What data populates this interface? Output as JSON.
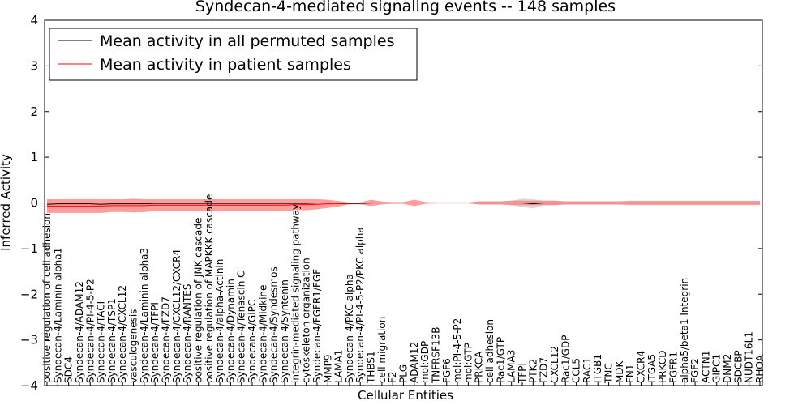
{
  "chart_data": {
    "type": "line",
    "title": "Syndecan-4-mediated signaling events -- 148 samples",
    "xlabel": "Cellular Entities",
    "ylabel": "Inferred Activity",
    "ylim": [
      -4,
      4
    ],
    "yticks": [
      -4,
      -3,
      -2,
      -1,
      0,
      1,
      2,
      3,
      4
    ],
    "ytick_labels": [
      "−4",
      "−3",
      "−2",
      "−1",
      "0",
      "1",
      "2",
      "3",
      "4"
    ],
    "grid": false,
    "legend_position": "top-left",
    "categories": [
      "positive regulation of cell adhesion",
      "Syndecan-4/Laminin alpha1",
      "SDC4",
      "Syndecan-4/ADAM12",
      "Syndecan-4/PI-4-5-P2",
      "Syndecan-4/TACI",
      "Syndecan-4/TSP1",
      "Syndecan-4/CXCL12",
      "vasculogenesis",
      "Syndecan-4/Laminin alpha3",
      "Syndecan-4/TFPI",
      "Syndecan-4/FZD7",
      "Syndecan-4/CXCL12/CXCR4",
      "Syndecan-4/RANTES",
      "positive regulation of JNK cascade",
      "positive regulation of MAPKKK cascade",
      "Syndecan-4/alpha-Actinin",
      "Syndecan-4/Dynamin",
      "Syndecan-4/Tenascin C",
      "Syndecan-4/GIPC",
      "Syndecan-4/Midkine",
      "Syndecan-4/Syndesmos",
      "Syndecan-4/Syntenin",
      "integrin-mediated signaling pathway",
      "cytoskeleton organization",
      "Syndecan-4/FGFR1/FGF",
      "MMP9",
      "LAMA1",
      "Syndecan-4/PKC alpha",
      "Syndecan-4/PI-4-5-P2/PKC alpha",
      "THBS1",
      "cell migration",
      "F2",
      "PLG",
      "ADAM12",
      "mol:GDP",
      "TNFRSF13B",
      "FGF6",
      "mol:PI-4-5-P2",
      "mol:GTP",
      "PRKCA",
      "cell adhesion",
      "Rac1/GTP",
      "LAMA3",
      "TFPI",
      "PTK2",
      "FZD7",
      "CXCL12",
      "Rac1/GDP",
      "CCL5",
      "RAC1",
      "ITGB1",
      "TNC",
      "MDK",
      "FN1",
      "CXCR4",
      "ITGA5",
      "PRKCD",
      "FGFR1",
      "alpha5/beta1 Integrin",
      "FGF2",
      "ACTN1",
      "GIPC1",
      "DNM2",
      "SDCBP",
      "NUDT16L1",
      "RHOA"
    ],
    "series": [
      {
        "name": "Mean activity in all permuted samples",
        "color": "#000000",
        "values": [
          -0.03,
          -0.02,
          -0.02,
          -0.02,
          -0.02,
          -0.03,
          -0.02,
          -0.02,
          -0.02,
          -0.02,
          -0.01,
          -0.01,
          -0.01,
          -0.01,
          -0.01,
          -0.01,
          -0.01,
          -0.01,
          -0.01,
          -0.01,
          -0.01,
          -0.01,
          -0.01,
          -0.01,
          -0.01,
          0.0,
          0.0,
          0.0,
          -0.01,
          -0.01,
          0.0,
          0.0,
          0.0,
          0.0,
          0.0,
          0.0,
          0.0,
          0.0,
          0.0,
          0.0,
          0.0,
          0.0,
          0.0,
          0.0,
          0.0,
          -0.02,
          0.0,
          0.0,
          0.0,
          0.0,
          0.0,
          0.0,
          0.0,
          0.0,
          0.0,
          0.0,
          0.0,
          0.0,
          0.0,
          0.0,
          0.0,
          0.0,
          0.0,
          0.0,
          0.0,
          0.0,
          0.0
        ],
        "band": [
          0.0,
          0.0,
          0.0,
          0.0,
          0.0,
          0.0,
          0.0,
          0.0,
          0.0,
          0.0,
          0.0,
          0.0,
          0.0,
          0.0,
          0.0,
          0.0,
          0.0,
          0.0,
          0.0,
          0.0,
          0.0,
          0.0,
          0.0,
          0.0,
          0.0,
          0.0,
          0.0,
          0.0,
          0.0,
          0.0,
          0.02,
          0.01,
          0.01,
          0.01,
          0.01,
          0.01,
          0.01,
          0.01,
          0.01,
          0.01,
          0.04,
          0.04,
          0.04,
          0.05,
          0.09,
          0.1,
          0.05,
          0.05,
          0.04,
          0.04,
          0.04,
          0.04,
          0.04,
          0.04,
          0.05,
          0.05,
          0.05,
          0.05,
          0.05,
          0.05,
          0.05,
          0.05,
          0.05,
          0.05,
          0.05,
          0.05,
          0.05
        ],
        "band_color": "#c8c8c8"
      },
      {
        "name": "Mean activity in patient samples",
        "color": "#ff0000",
        "values": [
          -0.07,
          -0.07,
          -0.07,
          -0.07,
          -0.07,
          -0.07,
          -0.06,
          -0.06,
          -0.06,
          -0.06,
          -0.05,
          -0.05,
          -0.05,
          -0.05,
          -0.05,
          -0.05,
          -0.05,
          -0.05,
          -0.05,
          -0.05,
          -0.05,
          -0.05,
          -0.05,
          -0.04,
          -0.04,
          -0.03,
          -0.02,
          -0.02,
          -0.01,
          -0.01,
          0.0,
          0.0,
          0.0,
          0.0,
          0.0,
          0.0,
          0.0,
          0.0,
          0.0,
          0.0,
          0.0,
          0.0,
          0.0,
          0.0,
          0.0,
          0.0,
          0.0,
          0.0,
          0.0,
          0.0,
          0.0,
          0.0,
          0.0,
          0.0,
          0.0,
          0.0,
          0.0,
          0.0,
          0.0,
          0.0,
          0.0,
          0.0,
          0.0,
          0.0,
          0.0,
          0.0,
          0.0
        ],
        "band": [
          0.15,
          0.15,
          0.15,
          0.15,
          0.15,
          0.15,
          0.14,
          0.14,
          0.15,
          0.14,
          0.13,
          0.13,
          0.13,
          0.13,
          0.13,
          0.13,
          0.13,
          0.13,
          0.13,
          0.13,
          0.13,
          0.13,
          0.13,
          0.12,
          0.12,
          0.11,
          0.09,
          0.06,
          0.02,
          0.02,
          0.07,
          0.03,
          0.02,
          0.02,
          0.07,
          0.02,
          0.01,
          0.01,
          0.01,
          0.01,
          0.03,
          0.03,
          0.03,
          0.05,
          0.05,
          0.05,
          0.05,
          0.05,
          0.03,
          0.03,
          0.03,
          0.03,
          0.03,
          0.03,
          0.04,
          0.04,
          0.04,
          0.04,
          0.04,
          0.04,
          0.04,
          0.04,
          0.04,
          0.04,
          0.04,
          0.04,
          0.04
        ],
        "band_color": "#ff7b7b"
      }
    ]
  }
}
